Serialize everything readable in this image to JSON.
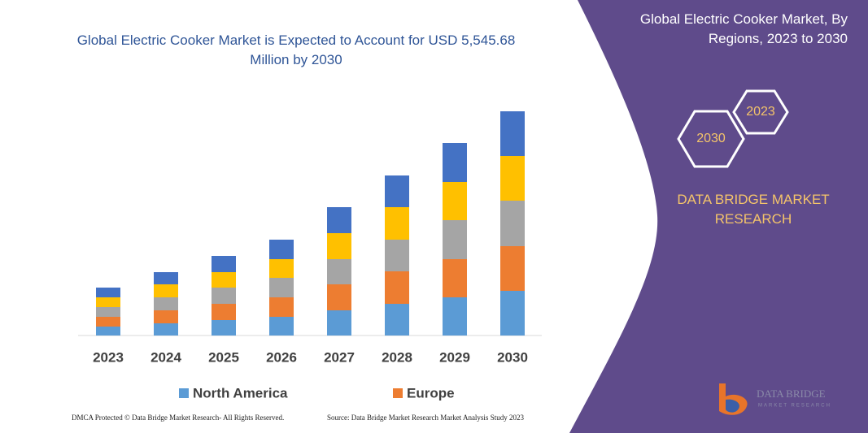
{
  "chart_data": {
    "type": "bar",
    "stacked": true,
    "title": "Global Electric Cooker Market is Expected to Account for USD 5,545.68 Million by 2030",
    "categories": [
      "2023",
      "2024",
      "2025",
      "2026",
      "2027",
      "2028",
      "2029",
      "2030"
    ],
    "series": [
      {
        "name": "North America",
        "color": "#5b9bd5",
        "values": [
          11,
          15,
          19,
          23,
          31,
          39,
          47,
          55
        ]
      },
      {
        "name": "Europe",
        "color": "#ed7d31",
        "values": [
          12,
          16,
          20,
          24,
          32,
          40,
          47,
          55
        ]
      },
      {
        "color": "#a5a5a5",
        "values": [
          12,
          16,
          20,
          24,
          31,
          39,
          48,
          56
        ]
      },
      {
        "color": "#ffc000",
        "values": [
          12,
          16,
          19,
          23,
          32,
          40,
          47,
          55
        ]
      },
      {
        "color": "#4472c4",
        "values": [
          12,
          15,
          20,
          24,
          32,
          39,
          48,
          55
        ]
      }
    ],
    "ylim": [
      0,
      276
    ]
  },
  "panel": {
    "heading": "Global Electric Cooker Market, By Regions, 2023 to 2030",
    "hex_small": "2023",
    "hex_large": "2030",
    "brand": "DATA BRIDGE MARKET RESEARCH",
    "logo_top": "DATA BRIDGE",
    "logo_bottom": "MARKET RESEARCH"
  },
  "footer": {
    "left": "DMCA Protected © Data Bridge Market Research- All Rights Reserved.",
    "right": "Source: Data Bridge Market Research Market Analysis Study 2023"
  }
}
